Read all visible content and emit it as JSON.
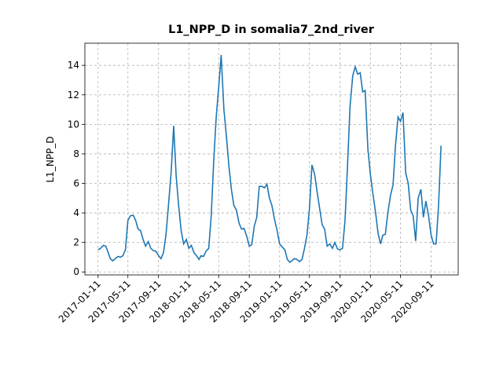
{
  "chart_data": {
    "type": "line",
    "title": "L1_NPP_D in somalia7_2nd_river",
    "ylabel": "L1_NPP_D",
    "x": [
      "2017-01-11",
      "2017-01-21",
      "2017-02-01",
      "2017-02-11",
      "2017-02-21",
      "2017-03-01",
      "2017-03-11",
      "2017-03-21",
      "2017-04-01",
      "2017-04-11",
      "2017-04-21",
      "2017-05-01",
      "2017-05-11",
      "2017-05-21",
      "2017-06-01",
      "2017-06-11",
      "2017-06-21",
      "2017-07-01",
      "2017-07-11",
      "2017-07-21",
      "2017-08-01",
      "2017-08-11",
      "2017-08-21",
      "2017-09-01",
      "2017-09-11",
      "2017-09-21",
      "2017-10-01",
      "2017-10-11",
      "2017-10-21",
      "2017-11-01",
      "2017-11-11",
      "2017-11-21",
      "2017-12-01",
      "2017-12-11",
      "2017-12-21",
      "2018-01-01",
      "2018-01-11",
      "2018-01-21",
      "2018-02-01",
      "2018-02-11",
      "2018-02-21",
      "2018-03-01",
      "2018-03-11",
      "2018-03-21",
      "2018-04-01",
      "2018-04-11",
      "2018-04-21",
      "2018-05-01",
      "2018-05-11",
      "2018-05-21",
      "2018-06-01",
      "2018-06-11",
      "2018-06-21",
      "2018-07-01",
      "2018-07-11",
      "2018-07-21",
      "2018-08-01",
      "2018-08-11",
      "2018-08-21",
      "2018-09-01",
      "2018-09-11",
      "2018-09-21",
      "2018-10-01",
      "2018-10-11",
      "2018-10-21",
      "2018-11-01",
      "2018-11-11",
      "2018-11-21",
      "2018-12-01",
      "2018-12-11",
      "2018-12-21",
      "2019-01-01",
      "2019-01-11",
      "2019-01-21",
      "2019-02-01",
      "2019-02-11",
      "2019-02-21",
      "2019-03-01",
      "2019-03-11",
      "2019-03-21",
      "2019-04-01",
      "2019-04-11",
      "2019-04-21",
      "2019-05-01",
      "2019-05-11",
      "2019-05-21",
      "2019-06-01",
      "2019-06-11",
      "2019-06-21",
      "2019-07-01",
      "2019-07-11",
      "2019-07-21",
      "2019-08-01",
      "2019-08-11",
      "2019-08-21",
      "2019-09-01",
      "2019-09-11",
      "2019-09-21",
      "2019-10-01",
      "2019-10-11",
      "2019-10-21",
      "2019-11-01",
      "2019-11-11",
      "2019-11-21",
      "2019-12-01",
      "2019-12-11",
      "2019-12-21",
      "2020-01-01",
      "2020-01-11",
      "2020-01-21",
      "2020-02-01",
      "2020-02-11",
      "2020-02-21",
      "2020-03-01",
      "2020-03-11",
      "2020-03-21",
      "2020-04-01",
      "2020-04-11",
      "2020-04-21",
      "2020-05-01",
      "2020-05-11",
      "2020-05-21",
      "2020-06-01",
      "2020-06-11",
      "2020-06-21",
      "2020-07-01",
      "2020-07-11",
      "2020-07-21",
      "2020-08-01",
      "2020-08-11",
      "2020-08-21",
      "2020-09-01",
      "2020-09-11",
      "2020-09-21",
      "2020-10-01",
      "2020-10-11",
      "2020-10-21"
    ],
    "series": [
      {
        "name": "L1_NPP_D",
        "color": "#1f77b4",
        "values": [
          1.5,
          1.6,
          1.8,
          1.75,
          1.3,
          0.9,
          0.75,
          0.9,
          1.05,
          1.0,
          1.1,
          1.5,
          3.5,
          3.8,
          3.85,
          3.5,
          2.9,
          2.8,
          2.2,
          1.75,
          2.05,
          1.6,
          1.45,
          1.4,
          1.1,
          0.9,
          1.3,
          2.5,
          4.5,
          6.8,
          9.9,
          6.5,
          4.5,
          2.8,
          1.9,
          2.2,
          1.6,
          1.8,
          1.3,
          1.1,
          0.85,
          1.1,
          1.05,
          1.4,
          1.6,
          3.8,
          7.5,
          10.5,
          12.5,
          14.7,
          11,
          9.2,
          7.2,
          5.6,
          4.5,
          4.2,
          3.3,
          2.9,
          2.95,
          2.4,
          1.75,
          1.85,
          3.1,
          3.7,
          5.8,
          5.8,
          5.7,
          5.95,
          5.0,
          4.5,
          3.6,
          2.8,
          1.9,
          1.7,
          1.5,
          0.85,
          0.65,
          0.75,
          0.9,
          0.85,
          0.7,
          0.85,
          1.6,
          2.5,
          4.3,
          7.25,
          6.6,
          5.4,
          4.3,
          3.2,
          2.9,
          1.75,
          1.9,
          1.6,
          2.0,
          1.55,
          1.5,
          1.6,
          3.5,
          7.2,
          11.2,
          13.3,
          13.9,
          13.4,
          13.5,
          12.2,
          12.3,
          8.3,
          6.6,
          5.3,
          4.0,
          2.6,
          1.9,
          2.5,
          2.55,
          4.0,
          5.2,
          5.9,
          8.6,
          10.5,
          10.2,
          10.8,
          6.7,
          6.0,
          4.2,
          3.8,
          2.1,
          5.0,
          5.6,
          3.7,
          4.8,
          3.8,
          2.5,
          1.9,
          1.9,
          4.5,
          8.55
        ]
      }
    ],
    "xlim": [
      "2016-11-19",
      "2020-12-29"
    ],
    "xticks": [
      "2017-01-11",
      "2017-05-11",
      "2017-09-11",
      "2018-01-11",
      "2018-05-11",
      "2018-09-11",
      "2019-01-11",
      "2019-05-11",
      "2019-09-11",
      "2020-01-11",
      "2020-05-11",
      "2020-09-11"
    ],
    "ylim": [
      -0.2,
      15.5
    ],
    "yticks": [
      0,
      2,
      4,
      6,
      8,
      10,
      12,
      14
    ],
    "grid": true
  }
}
